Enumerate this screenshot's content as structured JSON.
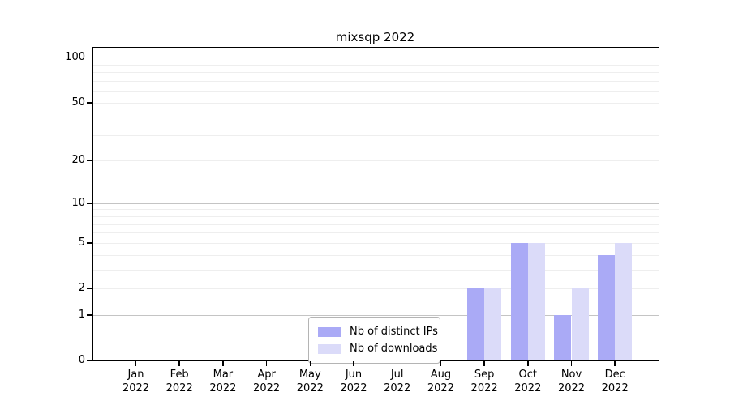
{
  "title": "mixsqp 2022",
  "chart_data": {
    "type": "bar",
    "title": "mixsqp 2022",
    "categories": [
      "Jan",
      "Feb",
      "Mar",
      "Apr",
      "May",
      "Jun",
      "Jul",
      "Aug",
      "Sep",
      "Oct",
      "Nov",
      "Dec"
    ],
    "category_year": "2022",
    "series": [
      {
        "name": "Nb of distinct IPs",
        "color": "#aaaaf6",
        "values": [
          0,
          0,
          0,
          0,
          0,
          0,
          0,
          0,
          2,
          5,
          1,
          4
        ]
      },
      {
        "name": "Nb of downloads",
        "color": "#dbdbf9",
        "values": [
          0,
          0,
          0,
          0,
          0,
          0,
          0,
          0,
          2,
          5,
          2,
          5
        ]
      }
    ],
    "xlabel": "",
    "ylabel": "",
    "y_axis": {
      "scale": "log1p",
      "tick_labels": [
        100,
        50,
        20,
        10,
        5,
        2,
        1,
        0
      ],
      "decade_gridlines": [
        1,
        10,
        100
      ],
      "light_gridlines": [
        2,
        3,
        4,
        5,
        6,
        7,
        8,
        9,
        20,
        30,
        40,
        50,
        60,
        70,
        80,
        90
      ],
      "ylim": [
        0,
        116
      ]
    },
    "legend": {
      "position": "lower center",
      "entries": [
        "Nb of distinct IPs",
        "Nb of downloads"
      ]
    },
    "grid": true,
    "colors": {
      "bar_distinct_ips": "#aaaaf6",
      "bar_downloads": "#dbdbf9",
      "decade_gridline": "#c4c4c4",
      "light_gridline": "#eeeeee",
      "spine": "#000000",
      "legend_border": "#b4b4b4",
      "background": "#ffffff"
    }
  }
}
